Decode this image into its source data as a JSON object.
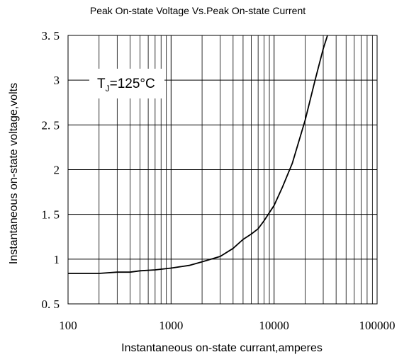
{
  "chart_data": {
    "type": "line",
    "title": "Peak On-state Voltage Vs.Peak On-state Current",
    "xlabel": "Instantaneous on-state currant,amperes",
    "ylabel": "Instantaneous on-state voltage,volts",
    "x_scale": "log",
    "xlim": [
      100,
      100000
    ],
    "ylim": [
      0.5,
      3.5
    ],
    "x_ticks": [
      100,
      1000,
      10000,
      100000
    ],
    "x_tick_labels": [
      "100",
      "1000",
      "10000",
      "100000"
    ],
    "y_ticks": [
      0.5,
      1,
      1.5,
      2,
      2.5,
      3,
      3.5
    ],
    "y_tick_labels": [
      "0. 5",
      "1",
      "1. 5",
      "2",
      "2. 5",
      "3",
      "3. 5"
    ],
    "grid": true,
    "annotation": {
      "main": "T",
      "subscript": "J",
      "rest": "=125°C"
    },
    "series": [
      {
        "x": [
          100,
          200,
          300,
          400,
          500,
          700,
          1000,
          1500,
          2000,
          3000,
          4000,
          5000,
          6000,
          7000,
          8000,
          10000,
          12000,
          15000,
          20000,
          25000,
          30000,
          33000
        ],
        "y": [
          0.84,
          0.84,
          0.855,
          0.855,
          0.87,
          0.88,
          0.9,
          0.93,
          0.97,
          1.03,
          1.12,
          1.22,
          1.28,
          1.34,
          1.43,
          1.6,
          1.8,
          2.07,
          2.55,
          3.0,
          3.35,
          3.5
        ]
      }
    ],
    "line_color": "#000000"
  }
}
